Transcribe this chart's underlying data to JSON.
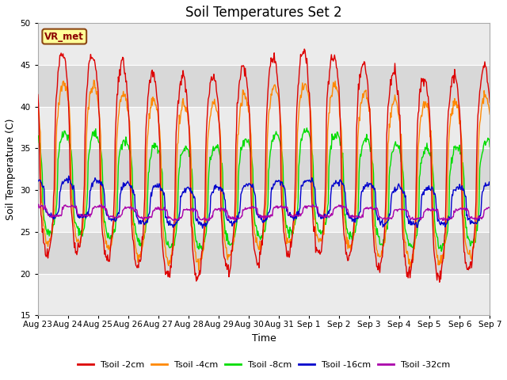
{
  "title": "Soil Temperatures Set 2",
  "xlabel": "Time",
  "ylabel": "Soil Temperature (C)",
  "ylim": [
    15,
    50
  ],
  "yticks": [
    15,
    20,
    25,
    30,
    35,
    40,
    45,
    50
  ],
  "bg_light": "#ebebeb",
  "bg_dark": "#d8d8d8",
  "grid_color": "#ffffff",
  "annotation_text": "VR_met",
  "annotation_box_color": "#ffff99",
  "annotation_border_color": "#8B4513",
  "series": [
    {
      "label": "Tsoil -2cm",
      "color": "#dd0000"
    },
    {
      "label": "Tsoil -4cm",
      "color": "#ff8800"
    },
    {
      "label": "Tsoil -8cm",
      "color": "#00dd00"
    },
    {
      "label": "Tsoil -16cm",
      "color": "#0000cc"
    },
    {
      "label": "Tsoil -32cm",
      "color": "#aa00aa"
    }
  ],
  "x_tick_labels": [
    "Aug 23",
    "Aug 24",
    "Aug 25",
    "Aug 26",
    "Aug 27",
    "Aug 28",
    "Aug 29",
    "Aug 30",
    "Aug 31",
    "Sep 1",
    "Sep 2",
    "Sep 3",
    "Sep 4",
    "Sep 5",
    "Sep 6",
    "Sep 7"
  ],
  "num_days": 15,
  "points_per_day": 48
}
